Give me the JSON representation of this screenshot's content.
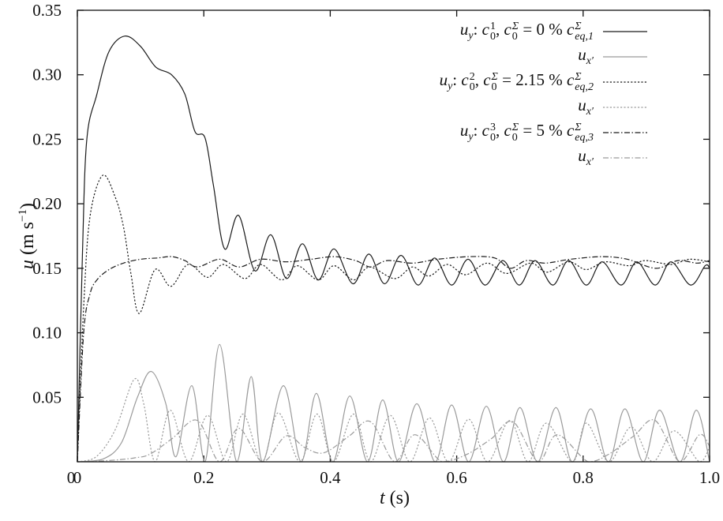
{
  "chart_data": {
    "type": "line",
    "xlabel": {
      "var": "t",
      "unit": "(s)"
    },
    "ylabel": {
      "var": "u",
      "unit": "(m s",
      "exp": "−1",
      "close": ")"
    },
    "xlim": [
      0,
      1.0
    ],
    "ylim": [
      0,
      0.35
    ],
    "xticks": [
      "0",
      "0.2",
      "0.4",
      "0.6",
      "0.8",
      "1.0"
    ],
    "xtick_values": [
      0,
      0.2,
      0.4,
      0.6,
      0.8,
      1.0
    ],
    "yticks": [
      "0",
      "0.05",
      "0.10",
      "0.15",
      "0.20",
      "0.25",
      "0.30",
      "0.35"
    ],
    "ytick_values": [
      0,
      0.05,
      0.1,
      0.15,
      0.2,
      0.25,
      0.3,
      0.35
    ],
    "grid": false,
    "legend_placement": "top-right",
    "series": [
      {
        "legend": {
          "var": "u",
          "vsub": "y",
          "csup": "1",
          "csub": "0",
          "c2sup": "Σ",
          "c2sub": "0",
          "eq": " = 0 % ",
          "ceqsup": "Σ",
          "ceqsub": "eq,1"
        },
        "color": "#1a1a1a",
        "style": "solid",
        "points": [
          [
            0,
            0
          ],
          [
            0.008,
            0.16
          ],
          [
            0.015,
            0.25
          ],
          [
            0.031,
            0.285
          ],
          [
            0.05,
            0.318
          ],
          [
            0.075,
            0.33
          ],
          [
            0.1,
            0.322
          ],
          [
            0.124,
            0.306
          ],
          [
            0.149,
            0.3
          ],
          [
            0.17,
            0.285
          ],
          [
            0.186,
            0.256
          ],
          [
            0.202,
            0.251
          ],
          [
            0.215,
            0.215
          ],
          [
            0.233,
            0.165
          ],
          [
            0.255,
            0.191
          ],
          [
            0.281,
            0.148
          ],
          [
            0.306,
            0.176
          ],
          [
            0.331,
            0.142
          ],
          [
            0.356,
            0.169
          ],
          [
            0.381,
            0.141
          ],
          [
            0.406,
            0.165
          ],
          [
            0.436,
            0.138
          ],
          [
            0.461,
            0.161
          ],
          [
            0.486,
            0.138
          ],
          [
            0.512,
            0.16
          ],
          [
            0.539,
            0.137
          ],
          [
            0.565,
            0.158
          ],
          [
            0.592,
            0.137
          ],
          [
            0.618,
            0.157
          ],
          [
            0.645,
            0.137
          ],
          [
            0.673,
            0.156
          ],
          [
            0.699,
            0.137
          ],
          [
            0.724,
            0.156
          ],
          [
            0.752,
            0.137
          ],
          [
            0.777,
            0.156
          ],
          [
            0.805,
            0.137
          ],
          [
            0.83,
            0.155
          ],
          [
            0.86,
            0.137
          ],
          [
            0.885,
            0.155
          ],
          [
            0.914,
            0.137
          ],
          [
            0.939,
            0.155
          ],
          [
            0.97,
            0.137
          ],
          [
            0.993,
            0.152
          ],
          [
            1.0,
            0.15
          ]
        ]
      },
      {
        "legend": {
          "var": "u",
          "vsub": "x′"
        },
        "color": "#9a9a9a",
        "style": "solid",
        "points": [
          [
            0,
            0
          ],
          [
            0.04,
            0.002
          ],
          [
            0.07,
            0.015
          ],
          [
            0.095,
            0.05
          ],
          [
            0.117,
            0.07
          ],
          [
            0.14,
            0.045
          ],
          [
            0.156,
            0.004
          ],
          [
            0.181,
            0.059
          ],
          [
            0.202,
            0.0
          ],
          [
            0.225,
            0.091
          ],
          [
            0.252,
            0.0
          ],
          [
            0.275,
            0.066
          ],
          [
            0.293,
            0.0
          ],
          [
            0.326,
            0.059
          ],
          [
            0.354,
            0.0
          ],
          [
            0.378,
            0.053
          ],
          [
            0.404,
            0.0
          ],
          [
            0.431,
            0.051
          ],
          [
            0.459,
            0.0
          ],
          [
            0.483,
            0.048
          ],
          [
            0.508,
            0.0
          ],
          [
            0.537,
            0.045
          ],
          [
            0.566,
            0.0
          ],
          [
            0.592,
            0.044
          ],
          [
            0.619,
            0.0
          ],
          [
            0.647,
            0.043
          ],
          [
            0.674,
            0.0
          ],
          [
            0.7,
            0.042
          ],
          [
            0.728,
            0.0
          ],
          [
            0.757,
            0.042
          ],
          [
            0.783,
            0.0
          ],
          [
            0.812,
            0.041
          ],
          [
            0.84,
            0.0
          ],
          [
            0.866,
            0.041
          ],
          [
            0.895,
            0.0
          ],
          [
            0.921,
            0.04
          ],
          [
            0.953,
            0.0
          ],
          [
            0.979,
            0.04
          ],
          [
            1.0,
            0.0
          ]
        ]
      },
      {
        "legend": {
          "var": "u",
          "vsub": "y",
          "csup": "2",
          "csub": "0",
          "c2sup": "Σ",
          "c2sub": "0",
          "eq": " = 2.15 % ",
          "ceqsup": "Σ",
          "ceqsub": "eq,2"
        },
        "color": "#1a1a1a",
        "style": "dotted",
        "points": [
          [
            0,
            0
          ],
          [
            0.01,
            0.12
          ],
          [
            0.02,
            0.19
          ],
          [
            0.04,
            0.222
          ],
          [
            0.06,
            0.205
          ],
          [
            0.073,
            0.182
          ],
          [
            0.085,
            0.145
          ],
          [
            0.098,
            0.115
          ],
          [
            0.123,
            0.149
          ],
          [
            0.148,
            0.136
          ],
          [
            0.175,
            0.153
          ],
          [
            0.206,
            0.143
          ],
          [
            0.231,
            0.153
          ],
          [
            0.265,
            0.142
          ],
          [
            0.29,
            0.153
          ],
          [
            0.323,
            0.141
          ],
          [
            0.348,
            0.152
          ],
          [
            0.381,
            0.141
          ],
          [
            0.406,
            0.152
          ],
          [
            0.437,
            0.141
          ],
          [
            0.462,
            0.151
          ],
          [
            0.502,
            0.142
          ],
          [
            0.53,
            0.151
          ],
          [
            0.556,
            0.144
          ],
          [
            0.585,
            0.153
          ],
          [
            0.614,
            0.145
          ],
          [
            0.648,
            0.154
          ],
          [
            0.679,
            0.146
          ],
          [
            0.717,
            0.154
          ],
          [
            0.743,
            0.147
          ],
          [
            0.777,
            0.155
          ],
          [
            0.805,
            0.149
          ],
          [
            0.835,
            0.155
          ],
          [
            0.873,
            0.152
          ],
          [
            0.898,
            0.156
          ],
          [
            0.939,
            0.153
          ],
          [
            0.968,
            0.157
          ],
          [
            1.0,
            0.155
          ]
        ]
      },
      {
        "legend": {
          "var": "u",
          "vsub": "x′"
        },
        "color": "#9a9a9a",
        "style": "dotted",
        "points": [
          [
            0,
            0
          ],
          [
            0.03,
            0.004
          ],
          [
            0.06,
            0.025
          ],
          [
            0.09,
            0.064
          ],
          [
            0.105,
            0.045
          ],
          [
            0.123,
            0.0
          ],
          [
            0.147,
            0.04
          ],
          [
            0.176,
            0.0
          ],
          [
            0.206,
            0.036
          ],
          [
            0.236,
            0.0
          ],
          [
            0.262,
            0.037
          ],
          [
            0.292,
            0.0
          ],
          [
            0.318,
            0.038
          ],
          [
            0.352,
            0.0
          ],
          [
            0.379,
            0.037
          ],
          [
            0.405,
            0.0
          ],
          [
            0.437,
            0.037
          ],
          [
            0.464,
            0.0
          ],
          [
            0.495,
            0.036
          ],
          [
            0.526,
            0.0
          ],
          [
            0.557,
            0.034
          ],
          [
            0.587,
            0.0
          ],
          [
            0.619,
            0.033
          ],
          [
            0.649,
            0.0
          ],
          [
            0.684,
            0.032
          ],
          [
            0.713,
            0.0
          ],
          [
            0.742,
            0.03
          ],
          [
            0.783,
            0.0
          ],
          [
            0.805,
            0.03
          ],
          [
            0.841,
            0.0
          ],
          [
            0.876,
            0.027
          ],
          [
            0.91,
            0.0
          ],
          [
            0.944,
            0.024
          ],
          [
            0.984,
            0.0
          ],
          [
            1.0,
            0.012
          ]
        ]
      },
      {
        "legend": {
          "var": "u",
          "vsub": "y",
          "csup": "3",
          "csub": "0",
          "c2sup": "Σ",
          "c2sub": "0",
          "eq": " = 5 % ",
          "ceqsup": "Σ",
          "ceqsub": "eq,3"
        },
        "color": "#1a1a1a",
        "style": "dashdot",
        "points": [
          [
            0,
            0
          ],
          [
            0.01,
            0.1
          ],
          [
            0.02,
            0.13
          ],
          [
            0.031,
            0.141
          ],
          [
            0.05,
            0.149
          ],
          [
            0.073,
            0.154
          ],
          [
            0.1,
            0.157
          ],
          [
            0.127,
            0.158
          ],
          [
            0.15,
            0.159
          ],
          [
            0.17,
            0.156
          ],
          [
            0.19,
            0.151
          ],
          [
            0.225,
            0.157
          ],
          [
            0.256,
            0.151
          ],
          [
            0.29,
            0.157
          ],
          [
            0.33,
            0.155
          ],
          [
            0.37,
            0.157
          ],
          [
            0.406,
            0.159
          ],
          [
            0.44,
            0.156
          ],
          [
            0.464,
            0.151
          ],
          [
            0.49,
            0.156
          ],
          [
            0.53,
            0.154
          ],
          [
            0.57,
            0.157
          ],
          [
            0.62,
            0.159
          ],
          [
            0.66,
            0.158
          ],
          [
            0.685,
            0.15
          ],
          [
            0.71,
            0.156
          ],
          [
            0.74,
            0.154
          ],
          [
            0.78,
            0.157
          ],
          [
            0.83,
            0.159
          ],
          [
            0.87,
            0.157
          ],
          [
            0.915,
            0.15
          ],
          [
            0.95,
            0.156
          ],
          [
            0.98,
            0.154
          ],
          [
            1.0,
            0.156
          ]
        ]
      },
      {
        "legend": {
          "var": "u",
          "vsub": "x′"
        },
        "color": "#9a9a9a",
        "style": "dashdot",
        "points": [
          [
            0,
            0
          ],
          [
            0.05,
            0.001
          ],
          [
            0.09,
            0.003
          ],
          [
            0.115,
            0.006
          ],
          [
            0.15,
            0.018
          ],
          [
            0.19,
            0.032
          ],
          [
            0.225,
            0.0
          ],
          [
            0.255,
            0.026
          ],
          [
            0.293,
            0.0
          ],
          [
            0.33,
            0.02
          ],
          [
            0.36,
            0.011
          ],
          [
            0.39,
            0.007
          ],
          [
            0.43,
            0.02
          ],
          [
            0.464,
            0.031
          ],
          [
            0.502,
            0.0
          ],
          [
            0.534,
            0.021
          ],
          [
            0.577,
            0.0
          ],
          [
            0.617,
            0.006
          ],
          [
            0.655,
            0.018
          ],
          [
            0.689,
            0.031
          ],
          [
            0.729,
            0.0
          ],
          [
            0.759,
            0.021
          ],
          [
            0.808,
            0.0
          ],
          [
            0.841,
            0.006
          ],
          [
            0.88,
            0.02
          ],
          [
            0.914,
            0.032
          ],
          [
            0.953,
            0.0
          ],
          [
            0.984,
            0.021
          ],
          [
            1.0,
            0.012
          ]
        ]
      }
    ]
  }
}
